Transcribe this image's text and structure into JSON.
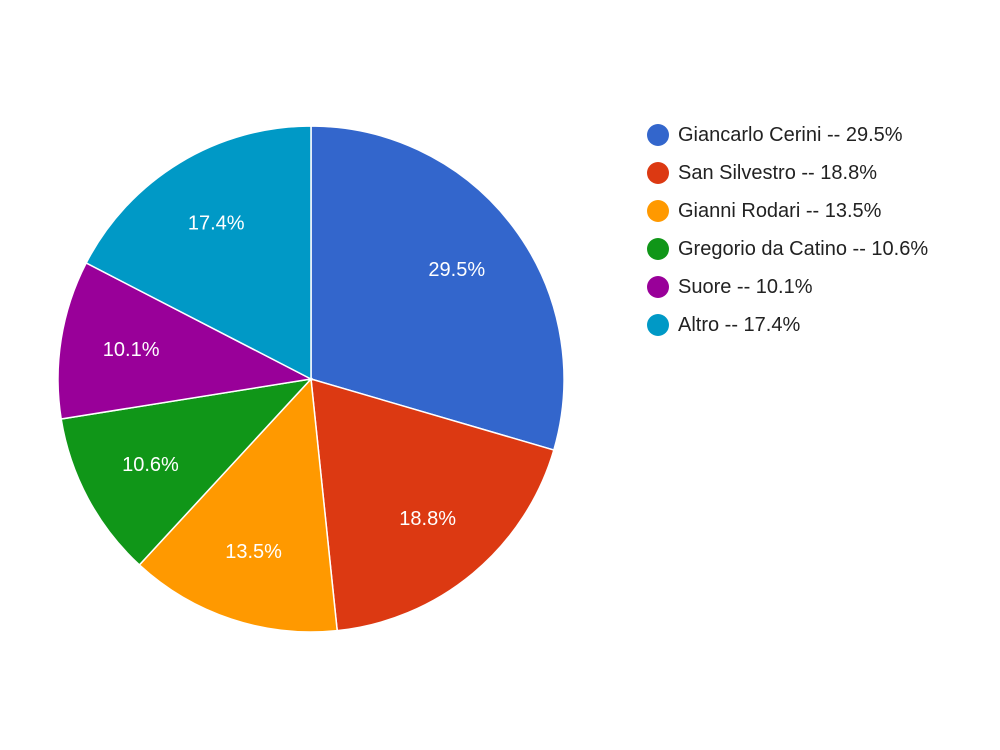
{
  "chart_data": {
    "type": "pie",
    "title": "",
    "legend_position": "right",
    "slices": [
      {
        "label": "Giancarlo Cerini",
        "value": 29.5,
        "display": "29.5%",
        "legend_text": "Giancarlo Cerini -- 29.5%",
        "color": "#3366cc"
      },
      {
        "label": "San Silvestro",
        "value": 18.8,
        "display": "18.8%",
        "legend_text": "San Silvestro -- 18.8%",
        "color": "#dc3912"
      },
      {
        "label": "Gianni Rodari",
        "value": 13.5,
        "display": "13.5%",
        "legend_text": "Gianni Rodari -- 13.5%",
        "color": "#ff9900"
      },
      {
        "label": "Gregorio da Catino",
        "value": 10.6,
        "display": "10.6%",
        "legend_text": "Gregorio da Catino -- 10.6%",
        "color": "#109618"
      },
      {
        "label": "Suore",
        "value": 10.1,
        "display": "10.1%",
        "legend_text": "Suore -- 10.1%",
        "color": "#990099"
      },
      {
        "label": "Altro",
        "value": 17.4,
        "display": "17.4%",
        "legend_text": "Altro -- 17.4%",
        "color": "#0099c6"
      }
    ]
  }
}
